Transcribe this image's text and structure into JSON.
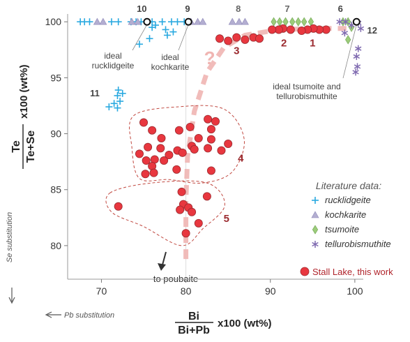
{
  "chart_data": {
    "type": "scatter",
    "xaxis": {
      "label_fraction_num": "Bi",
      "label_fraction_den": "Bi+Pb",
      "label_suffix": "x100 (wt%)",
      "range": [
        66,
        101
      ],
      "ticks": [
        "70",
        "80",
        "90",
        "100"
      ],
      "tick_values": [
        70,
        80,
        90,
        100
      ],
      "substitution_label": "Pb substitution"
    },
    "yaxis": {
      "label_fraction_num": "Te",
      "label_fraction_den": "Te+Se",
      "label_suffix": "x100 (wt%)",
      "range": [
        77,
        100.7
      ],
      "ticks": [
        "80",
        "85",
        "90",
        "95",
        "100"
      ],
      "tick_values": [
        80,
        85,
        90,
        95,
        100
      ],
      "substitution_label": "Se substitution"
    },
    "legend": {
      "title": "Literature data:",
      "items": [
        {
          "label": "rucklidgeite",
          "marker": "plus",
          "color": "#29a9e0"
        },
        {
          "label": "kochkarite",
          "marker": "triangle",
          "color": "#b3aed1"
        },
        {
          "label": "tsumoite",
          "marker": "diamond",
          "color": "#9ccc7a"
        },
        {
          "label": "tellurobismuthite",
          "marker": "asterisk",
          "color": "#7f6ab0"
        }
      ],
      "this_work": {
        "label": "Stall Lake, this work",
        "marker": "circle",
        "color": "#e8373f"
      }
    },
    "series": [
      {
        "name": "rucklidgeite",
        "marker": "plus",
        "color": "#29a9e0",
        "points": [
          [
            67.5,
            100
          ],
          [
            68.0,
            100
          ],
          [
            68.6,
            100
          ],
          [
            71.2,
            100
          ],
          [
            72.0,
            100
          ],
          [
            73.5,
            100
          ],
          [
            74.1,
            100
          ],
          [
            74.7,
            100
          ],
          [
            75.3,
            100
          ],
          [
            76.0,
            100
          ],
          [
            77.2,
            100
          ],
          [
            78.3,
            100
          ],
          [
            79.0,
            100
          ],
          [
            79.8,
            100
          ],
          [
            76.4,
            99.7
          ],
          [
            76.0,
            99.5
          ],
          [
            77.6,
            99.3
          ],
          [
            78.5,
            99.1
          ],
          [
            77.8,
            98.8
          ],
          [
            75.7,
            98.5
          ],
          [
            74.5,
            98.0
          ],
          [
            72.0,
            93.9
          ],
          [
            72.5,
            93.6
          ],
          [
            71.9,
            93.4
          ],
          [
            72.2,
            92.9
          ],
          [
            71.5,
            92.7
          ],
          [
            70.9,
            92.4
          ],
          [
            71.9,
            92.3
          ]
        ]
      },
      {
        "name": "kochkarite",
        "marker": "triangle",
        "color": "#b3aed1",
        "points": [
          [
            69.5,
            100
          ],
          [
            70.2,
            100
          ],
          [
            73.6,
            100
          ],
          [
            74.3,
            100
          ],
          [
            80.6,
            100
          ],
          [
            81.4,
            100
          ],
          [
            82.0,
            100
          ],
          [
            85.5,
            100
          ],
          [
            86.3,
            100
          ],
          [
            87.0,
            100
          ]
        ]
      },
      {
        "name": "tsumoite",
        "marker": "diamond",
        "color": "#9ccc7a",
        "points": [
          [
            90.4,
            100
          ],
          [
            91.1,
            100
          ],
          [
            91.8,
            100
          ],
          [
            92.6,
            100
          ],
          [
            93.3,
            100
          ],
          [
            94.0,
            100
          ],
          [
            94.8,
            100
          ],
          [
            98.6,
            100
          ],
          [
            99.2,
            100
          ],
          [
            99.6,
            99.5
          ],
          [
            99.2,
            98.4
          ]
        ]
      },
      {
        "name": "tellurobismuthite",
        "marker": "asterisk",
        "color": "#7f6ab0",
        "points": [
          [
            98.2,
            100
          ],
          [
            98.9,
            100
          ],
          [
            99.6,
            99.7
          ],
          [
            100.4,
            99.9
          ],
          [
            100.7,
            99.4
          ],
          [
            98.8,
            99.0
          ],
          [
            100.4,
            97.6
          ],
          [
            100.2,
            96.9
          ],
          [
            100.3,
            96.0
          ],
          [
            100.1,
            95.5
          ]
        ]
      },
      {
        "name": "Stall Lake, this work",
        "marker": "circle",
        "color": "#e8373f",
        "points": [
          [
            96.6,
            99.3
          ],
          [
            95.8,
            99.3
          ],
          [
            95.1,
            99.4
          ],
          [
            94.4,
            99.3
          ],
          [
            93.7,
            99.2
          ],
          [
            92.4,
            99.3
          ],
          [
            91.5,
            99.4
          ],
          [
            91.0,
            99.3
          ],
          [
            90.2,
            99.3
          ],
          [
            84.0,
            98.5
          ],
          [
            85.0,
            98.3
          ],
          [
            86.0,
            98.6
          ],
          [
            87.0,
            98.4
          ],
          [
            88.0,
            98.6
          ],
          [
            88.7,
            98.5
          ],
          [
            75.0,
            91.0
          ],
          [
            80.5,
            90.6
          ],
          [
            82.6,
            91.3
          ],
          [
            83.5,
            91.1
          ],
          [
            76.0,
            90.3
          ],
          [
            79.2,
            90.3
          ],
          [
            83.0,
            90.4
          ],
          [
            77.1,
            89.6
          ],
          [
            81.5,
            89.6
          ],
          [
            83.0,
            89.5
          ],
          [
            85.0,
            89.1
          ],
          [
            80.7,
            88.9
          ],
          [
            75.5,
            88.8
          ],
          [
            77.0,
            88.7
          ],
          [
            79.0,
            88.5
          ],
          [
            84.2,
            88.5
          ],
          [
            79.6,
            88.3
          ],
          [
            81.0,
            88.6
          ],
          [
            82.6,
            88.7
          ],
          [
            74.5,
            88.2
          ],
          [
            78.0,
            88.1
          ],
          [
            76.3,
            87.7
          ],
          [
            77.4,
            87.6
          ],
          [
            75.3,
            87.6
          ],
          [
            76.0,
            87.1
          ],
          [
            78.9,
            86.8
          ],
          [
            83.0,
            86.7
          ],
          [
            75.2,
            86.4
          ],
          [
            76.2,
            86.5
          ],
          [
            72.0,
            83.5
          ],
          [
            79.5,
            84.8
          ],
          [
            82.5,
            84.4
          ],
          [
            79.7,
            83.7
          ],
          [
            80.3,
            83.4
          ],
          [
            79.3,
            83.2
          ],
          [
            80.7,
            83.0
          ],
          [
            81.5,
            82.0
          ],
          [
            80.0,
            81.1
          ]
        ]
      }
    ],
    "annotations": [
      {
        "text": "10",
        "anchor": [
          75.6,
          100
        ],
        "dx": -10,
        "dy": -14,
        "color": "#444444"
      },
      {
        "text": "9",
        "anchor": [
          80.2,
          100
        ],
        "dx": 0,
        "dy": -14,
        "color": "#444444"
      },
      {
        "text": "8",
        "anchor": [
          86.2,
          100
        ],
        "dx": 0,
        "dy": -14,
        "color": "#666666"
      },
      {
        "text": "7",
        "anchor": [
          92.0,
          100
        ],
        "dx": 0,
        "dy": -14,
        "color": "#666666"
      },
      {
        "text": "6",
        "anchor": [
          98.3,
          100
        ],
        "dx": 0,
        "dy": -14,
        "color": "#444444"
      },
      {
        "text": "12",
        "anchor": [
          100.4,
          99.7
        ],
        "dx": 20,
        "dy": 12,
        "color": "#444444"
      },
      {
        "text": "11",
        "anchor": [
          71.2,
          93.6
        ],
        "dx": -24,
        "dy": 4,
        "color": "#444444"
      },
      {
        "text": "1",
        "anchor": [
          95.0,
          99.3
        ],
        "dx": 0,
        "dy": 24,
        "color": "#9b2a2f"
      },
      {
        "text": "2",
        "anchor": [
          91.6,
          99.3
        ],
        "dx": 0,
        "dy": 24,
        "color": "#9b2a2f"
      },
      {
        "text": "3",
        "anchor": [
          86.0,
          98.5
        ],
        "dx": 0,
        "dy": 22,
        "color": "#9b2a2f"
      },
      {
        "text": "4",
        "anchor": [
          86.5,
          87.5
        ],
        "dx": 0,
        "dy": 0,
        "color": "#9b2a2f"
      },
      {
        "text": "5",
        "anchor": [
          84.8,
          82.1
        ],
        "dx": 0,
        "dy": 0,
        "color": "#9b2a2f"
      }
    ],
    "ideal_points": [
      {
        "label": "ideal rucklidgeite",
        "x": 75.4,
        "y": 100,
        "label_lines": [
          "ideal",
          "rucklidgeite"
        ]
      },
      {
        "label": "ideal kochkarite",
        "x": 80.3,
        "y": 100,
        "label_lines": [
          "ideal",
          "kochkarite"
        ]
      },
      {
        "label": "ideal tsumoite and tellurobismuthite",
        "x": 100.2,
        "y": 100,
        "label_lines": [
          "ideal tsumoite and",
          "tellurobismuthite"
        ]
      }
    ],
    "arrow_label": "to poubaite",
    "trend_question_mark": "?"
  }
}
